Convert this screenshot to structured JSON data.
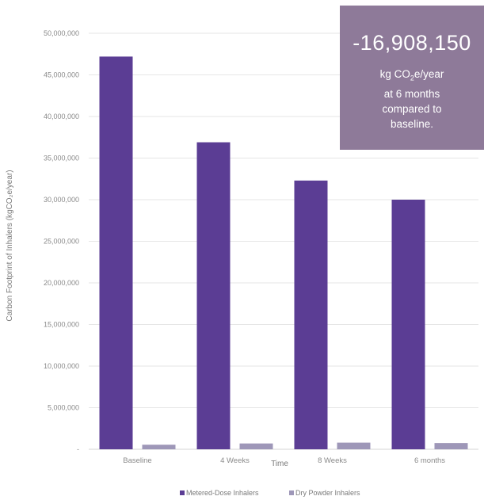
{
  "chart_data": {
    "type": "bar",
    "categories": [
      "Baseline",
      "4 Weeks",
      "8 Weeks",
      "6 months"
    ],
    "series": [
      {
        "name": "Metered-Dose Inhalers",
        "values": [
          47200000,
          36900000,
          32300000,
          30000000
        ],
        "color": "#5b3d94"
      },
      {
        "name": "Dry Powder Inhalers",
        "values": [
          550000,
          700000,
          800000,
          750000
        ],
        "color": "#9e97b8"
      }
    ],
    "xlabel": "Time",
    "ylabel": "Carbon Footprint of Inhalers (kgCO₂e/year)",
    "ylim": [
      0,
      50000000
    ],
    "yticks": [
      "-",
      "5,000,000",
      "10,000,000",
      "15,000,000",
      "20,000,000",
      "25,000,000",
      "30,000,000",
      "35,000,000",
      "40,000,000",
      "45,000,000",
      "50,000,000"
    ],
    "grid": true,
    "legend": "bottom"
  },
  "callout": {
    "value": "-16,908,150",
    "line1_pre": "kg CO",
    "line1_sub": "2",
    "line1_post": "e/year",
    "line2": "at 6 months",
    "line3": "compared to",
    "line4": "baseline."
  }
}
